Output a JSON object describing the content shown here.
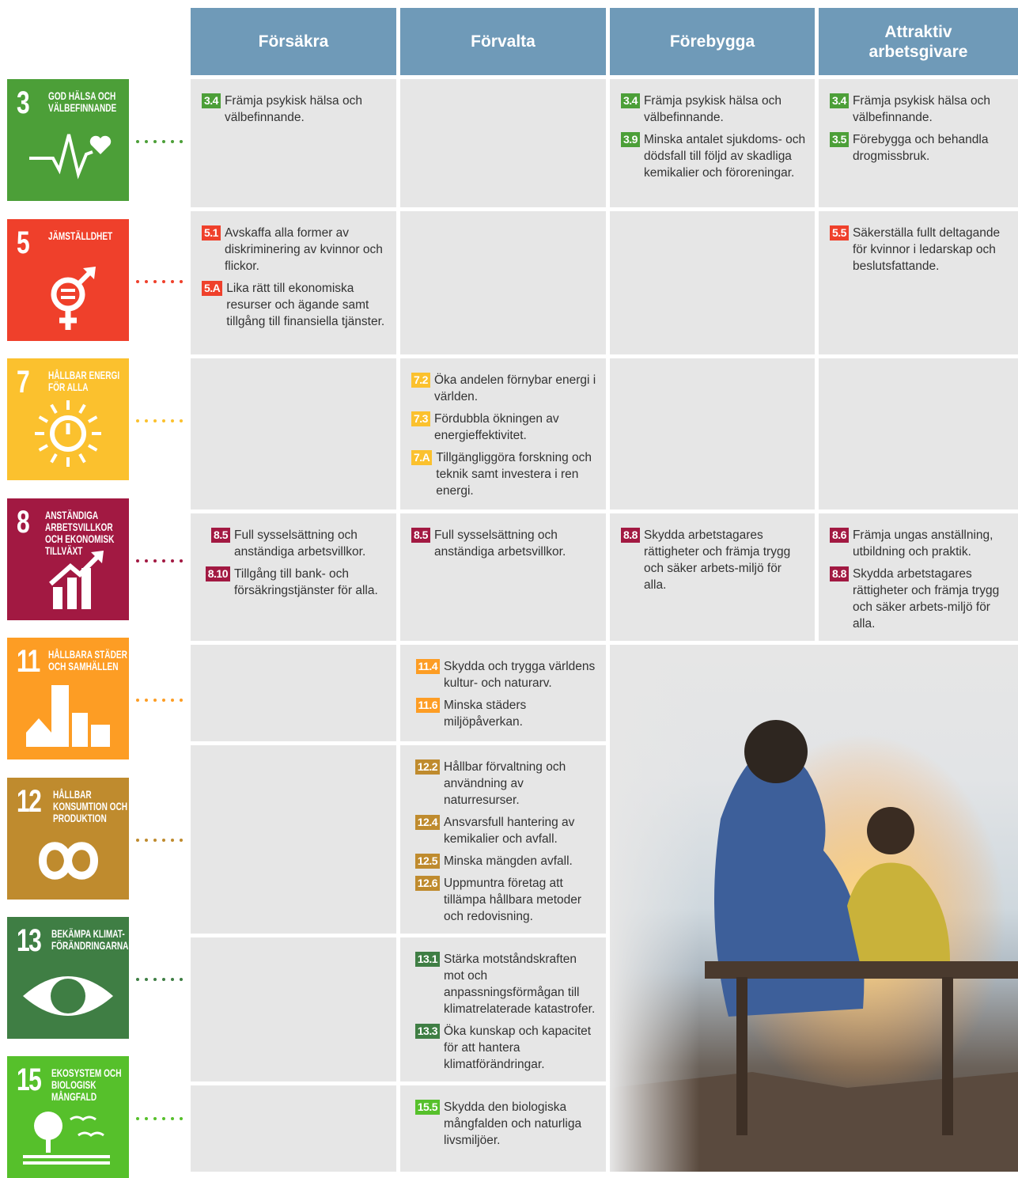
{
  "header": {
    "columns": [
      "Försäkra",
      "Förvalta",
      "Förebygga",
      "Attraktiv arbetsgivare"
    ]
  },
  "goals": [
    {
      "number": "3",
      "title": "GOD HÄLSA OCH VÄLBEFINNANDE",
      "color": "#4c9f38",
      "cells": [
        [
          {
            "code": "3.4",
            "text": "Främja psykisk hälsa och välbefinnande."
          }
        ],
        [],
        [
          {
            "code": "3.4",
            "text": "Främja psykisk hälsa och välbefinnande."
          },
          {
            "code": "3.9",
            "text": "Minska antalet sjukdoms- och dödsfall till följd av skadliga kemikalier och föroreningar."
          }
        ],
        [
          {
            "code": "3.4",
            "text": "Främja psykisk hälsa och välbefinnande."
          },
          {
            "code": "3.5",
            "text": "Förebygga och behandla drogmissbruk."
          }
        ]
      ]
    },
    {
      "number": "5",
      "title": "JÄMSTÄLLDHET",
      "color": "#ef402b",
      "cells": [
        [
          {
            "code": "5.1",
            "text": "Avskaffa alla former av diskriminering av kvinnor och flickor."
          },
          {
            "code": "5.A",
            "text": "Lika rätt till ekonomiska resurser och ägande samt tillgång till finansiella tjänster."
          }
        ],
        [],
        [],
        [
          {
            "code": "5.5",
            "text": "Säkerställa fullt deltagande för kvinnor i ledarskap och beslutsfattande."
          }
        ]
      ]
    },
    {
      "number": "7",
      "title": "HÅLLBAR ENERGI FÖR ALLA",
      "color": "#fbc12e",
      "cells": [
        [],
        [
          {
            "code": "7.2",
            "text": "Öka andelen förnybar energi i världen."
          },
          {
            "code": "7.3",
            "text": "Fördubbla ökningen av energieffektivitet."
          },
          {
            "code": "7.A",
            "text": "Tillgängliggöra forskning och teknik samt investera i ren energi."
          }
        ],
        [],
        []
      ]
    },
    {
      "number": "8",
      "title": "ANSTÄNDIGA ARBETSVILLKOR OCH EKONOMISK TILLVÄXT",
      "color": "#a21942",
      "cells": [
        [
          {
            "code": "8.5",
            "text": "Full sysselsättning och anständiga arbetsvillkor."
          },
          {
            "code": "8.10",
            "text": "Tillgång till bank- och försäkringstjänster för alla."
          }
        ],
        [
          {
            "code": "8.5",
            "text": "Full sysselsättning och anständiga arbetsvillkor."
          }
        ],
        [
          {
            "code": "8.8",
            "text": "Skydda arbetstagares rättigheter och främja trygg och säker arbets-miljö för alla."
          }
        ],
        [
          {
            "code": "8.6",
            "text": "Främja ungas anställning, utbildning och praktik."
          },
          {
            "code": "8.8",
            "text": "Skydda arbetstagares rättigheter och främja trygg och säker arbets-miljö för alla."
          }
        ]
      ]
    },
    {
      "number": "11",
      "title": "HÅLLBARA STÄDER OCH SAMHÄLLEN",
      "color": "#fd9d24",
      "cells": [
        [],
        [
          {
            "code": "11.4",
            "text": "Skydda och trygga världens kultur- och naturarv."
          },
          {
            "code": "11.6",
            "text": "Minska städers miljöpåverkan."
          }
        ],
        [],
        []
      ]
    },
    {
      "number": "12",
      "title": "HÅLLBAR KONSUMTION OCH PRODUKTION",
      "color": "#bf8b2e",
      "cells": [
        [],
        [
          {
            "code": "12.2",
            "text": "Hållbar förvaltning och användning av naturresurser."
          },
          {
            "code": "12.4",
            "text": "Ansvarsfull hantering av kemikalier och avfall."
          },
          {
            "code": "12.5",
            "text": "Minska mängden avfall."
          },
          {
            "code": "12.6",
            "text": "Uppmuntra företag att tillämpa hållbara metoder och redovisning."
          }
        ],
        [],
        []
      ]
    },
    {
      "number": "13",
      "title": "BEKÄMPA KLIMAT-FÖRÄNDRINGARNA",
      "color": "#3f7e44",
      "cells": [
        [],
        [
          {
            "code": "13.1",
            "text": "Stärka motståndskraften mot och anpassningsförmågan till klimatrelaterade katastrofer."
          },
          {
            "code": "13.3",
            "text": "Öka kunskap och kapacitet för att hantera klimatförändringar."
          }
        ],
        [],
        []
      ]
    },
    {
      "number": "15",
      "title": "EKOSYSTEM OCH BIOLOGISK MÅNGFALD",
      "color": "#56c02b",
      "cells": [
        [],
        [
          {
            "code": "15.5",
            "text": "Skydda den biologiska mångfalden och naturliga livsmiljöer."
          }
        ],
        [],
        []
      ]
    }
  ]
}
